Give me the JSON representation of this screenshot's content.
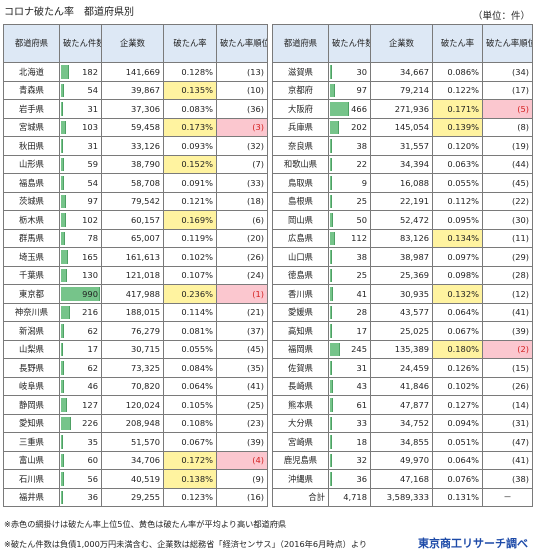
{
  "title": "コロナ破たん率　都道府県別",
  "unit": "（単位：件）",
  "headers": {
    "pref": "都道府県",
    "count": "破たん件数",
    "companies": "企業数",
    "rate": "破たん率",
    "rank": "破たん率順位"
  },
  "bar_color": "#76c48a",
  "highlight_colors": {
    "yellow": "#fff3a0",
    "pink": "#fbc7cf"
  },
  "max_count": 990,
  "left_rows": [
    {
      "pref": "北海道",
      "count": "182",
      "v": 182,
      "companies": "141,669",
      "rate": "0.128%",
      "rank": "(13)",
      "hl": ""
    },
    {
      "pref": "青森県",
      "count": "54",
      "v": 54,
      "companies": "39,867",
      "rate": "0.135%",
      "rank": "(10)",
      "hl": "yellow"
    },
    {
      "pref": "岩手県",
      "count": "31",
      "v": 31,
      "companies": "37,306",
      "rate": "0.083%",
      "rank": "(36)",
      "hl": ""
    },
    {
      "pref": "宮城県",
      "count": "103",
      "v": 103,
      "companies": "59,458",
      "rate": "0.173%",
      "rank": "(3)",
      "hl": "pink"
    },
    {
      "pref": "秋田県",
      "count": "31",
      "v": 31,
      "companies": "33,126",
      "rate": "0.093%",
      "rank": "(32)",
      "hl": ""
    },
    {
      "pref": "山形県",
      "count": "59",
      "v": 59,
      "companies": "38,790",
      "rate": "0.152%",
      "rank": "(7)",
      "hl": "yellow"
    },
    {
      "pref": "福島県",
      "count": "54",
      "v": 54,
      "companies": "58,708",
      "rate": "0.091%",
      "rank": "(33)",
      "hl": ""
    },
    {
      "pref": "茨城県",
      "count": "97",
      "v": 97,
      "companies": "79,542",
      "rate": "0.121%",
      "rank": "(18)",
      "hl": ""
    },
    {
      "pref": "栃木県",
      "count": "102",
      "v": 102,
      "companies": "60,157",
      "rate": "0.169%",
      "rank": "(6)",
      "hl": "yellow"
    },
    {
      "pref": "群馬県",
      "count": "78",
      "v": 78,
      "companies": "65,007",
      "rate": "0.119%",
      "rank": "(20)",
      "hl": ""
    },
    {
      "pref": "埼玉県",
      "count": "165",
      "v": 165,
      "companies": "161,613",
      "rate": "0.102%",
      "rank": "(26)",
      "hl": ""
    },
    {
      "pref": "千葉県",
      "count": "130",
      "v": 130,
      "companies": "121,018",
      "rate": "0.107%",
      "rank": "(24)",
      "hl": ""
    },
    {
      "pref": "東京都",
      "count": "990",
      "v": 990,
      "companies": "417,988",
      "rate": "0.236%",
      "rank": "(1)",
      "hl": "pink"
    },
    {
      "pref": "神奈川県",
      "count": "216",
      "v": 216,
      "companies": "188,015",
      "rate": "0.114%",
      "rank": "(21)",
      "hl": ""
    },
    {
      "pref": "新潟県",
      "count": "62",
      "v": 62,
      "companies": "76,279",
      "rate": "0.081%",
      "rank": "(37)",
      "hl": ""
    },
    {
      "pref": "山梨県",
      "count": "17",
      "v": 17,
      "companies": "30,715",
      "rate": "0.055%",
      "rank": "(45)",
      "hl": ""
    },
    {
      "pref": "長野県",
      "count": "62",
      "v": 62,
      "companies": "73,325",
      "rate": "0.084%",
      "rank": "(35)",
      "hl": ""
    },
    {
      "pref": "岐阜県",
      "count": "46",
      "v": 46,
      "companies": "70,820",
      "rate": "0.064%",
      "rank": "(41)",
      "hl": ""
    },
    {
      "pref": "静岡県",
      "count": "127",
      "v": 127,
      "companies": "120,024",
      "rate": "0.105%",
      "rank": "(25)",
      "hl": ""
    },
    {
      "pref": "愛知県",
      "count": "226",
      "v": 226,
      "companies": "208,948",
      "rate": "0.108%",
      "rank": "(23)",
      "hl": ""
    },
    {
      "pref": "三重県",
      "count": "35",
      "v": 35,
      "companies": "51,570",
      "rate": "0.067%",
      "rank": "(39)",
      "hl": ""
    },
    {
      "pref": "富山県",
      "count": "60",
      "v": 60,
      "companies": "34,706",
      "rate": "0.172%",
      "rank": "(4)",
      "hl": "pink"
    },
    {
      "pref": "石川県",
      "count": "56",
      "v": 56,
      "companies": "40,519",
      "rate": "0.138%",
      "rank": "(9)",
      "hl": "yellow"
    },
    {
      "pref": "福井県",
      "count": "36",
      "v": 36,
      "companies": "29,255",
      "rate": "0.123%",
      "rank": "(16)",
      "hl": ""
    }
  ],
  "right_rows": [
    {
      "pref": "滋賀県",
      "count": "30",
      "v": 30,
      "companies": "34,667",
      "rate": "0.086%",
      "rank": "(34)",
      "hl": ""
    },
    {
      "pref": "京都府",
      "count": "97",
      "v": 97,
      "companies": "79,214",
      "rate": "0.122%",
      "rank": "(17)",
      "hl": ""
    },
    {
      "pref": "大阪府",
      "count": "466",
      "v": 466,
      "companies": "271,936",
      "rate": "0.171%",
      "rank": "(5)",
      "hl": "pink"
    },
    {
      "pref": "兵庫県",
      "count": "202",
      "v": 202,
      "companies": "145,054",
      "rate": "0.139%",
      "rank": "(8)",
      "hl": "yellow"
    },
    {
      "pref": "奈良県",
      "count": "38",
      "v": 38,
      "companies": "31,557",
      "rate": "0.120%",
      "rank": "(19)",
      "hl": ""
    },
    {
      "pref": "和歌山県",
      "count": "22",
      "v": 22,
      "companies": "34,394",
      "rate": "0.063%",
      "rank": "(44)",
      "hl": ""
    },
    {
      "pref": "鳥取県",
      "count": "9",
      "v": 9,
      "companies": "16,088",
      "rate": "0.055%",
      "rank": "(45)",
      "hl": ""
    },
    {
      "pref": "島根県",
      "count": "25",
      "v": 25,
      "companies": "22,191",
      "rate": "0.112%",
      "rank": "(22)",
      "hl": ""
    },
    {
      "pref": "岡山県",
      "count": "50",
      "v": 50,
      "companies": "52,472",
      "rate": "0.095%",
      "rank": "(30)",
      "hl": ""
    },
    {
      "pref": "広島県",
      "count": "112",
      "v": 112,
      "companies": "83,126",
      "rate": "0.134%",
      "rank": "(11)",
      "hl": "yellow"
    },
    {
      "pref": "山口県",
      "count": "38",
      "v": 38,
      "companies": "38,987",
      "rate": "0.097%",
      "rank": "(29)",
      "hl": ""
    },
    {
      "pref": "徳島県",
      "count": "25",
      "v": 25,
      "companies": "25,369",
      "rate": "0.098%",
      "rank": "(28)",
      "hl": ""
    },
    {
      "pref": "香川県",
      "count": "41",
      "v": 41,
      "companies": "30,935",
      "rate": "0.132%",
      "rank": "(12)",
      "hl": "yellow"
    },
    {
      "pref": "愛媛県",
      "count": "28",
      "v": 28,
      "companies": "43,577",
      "rate": "0.064%",
      "rank": "(41)",
      "hl": ""
    },
    {
      "pref": "高知県",
      "count": "17",
      "v": 17,
      "companies": "25,025",
      "rate": "0.067%",
      "rank": "(39)",
      "hl": ""
    },
    {
      "pref": "福岡県",
      "count": "245",
      "v": 245,
      "companies": "135,389",
      "rate": "0.180%",
      "rank": "(2)",
      "hl": "pink"
    },
    {
      "pref": "佐賀県",
      "count": "31",
      "v": 31,
      "companies": "24,459",
      "rate": "0.126%",
      "rank": "(15)",
      "hl": ""
    },
    {
      "pref": "長崎県",
      "count": "43",
      "v": 43,
      "companies": "41,846",
      "rate": "0.102%",
      "rank": "(26)",
      "hl": ""
    },
    {
      "pref": "熊本県",
      "count": "61",
      "v": 61,
      "companies": "47,877",
      "rate": "0.127%",
      "rank": "(14)",
      "hl": ""
    },
    {
      "pref": "大分県",
      "count": "33",
      "v": 33,
      "companies": "34,752",
      "rate": "0.094%",
      "rank": "(31)",
      "hl": ""
    },
    {
      "pref": "宮崎県",
      "count": "18",
      "v": 18,
      "companies": "34,855",
      "rate": "0.051%",
      "rank": "(47)",
      "hl": ""
    },
    {
      "pref": "鹿児島県",
      "count": "32",
      "v": 32,
      "companies": "49,970",
      "rate": "0.064%",
      "rank": "(41)",
      "hl": ""
    },
    {
      "pref": "沖縄県",
      "count": "36",
      "v": 36,
      "companies": "47,168",
      "rate": "0.076%",
      "rank": "(38)",
      "hl": ""
    }
  ],
  "total": {
    "label": "合計",
    "count": "4,718",
    "companies": "3,589,333",
    "rate": "0.131%",
    "rank": "－"
  },
  "note1": "※赤色の網掛けは破たん率上位5位、黄色は破たん率が平均より高い都道府県",
  "note2": "※破たん件数は負債1,000万円未満含む、企業数は総務省「経済センサス」（2016年6月時点）より",
  "credit": "東京商工リサーチ調べ"
}
